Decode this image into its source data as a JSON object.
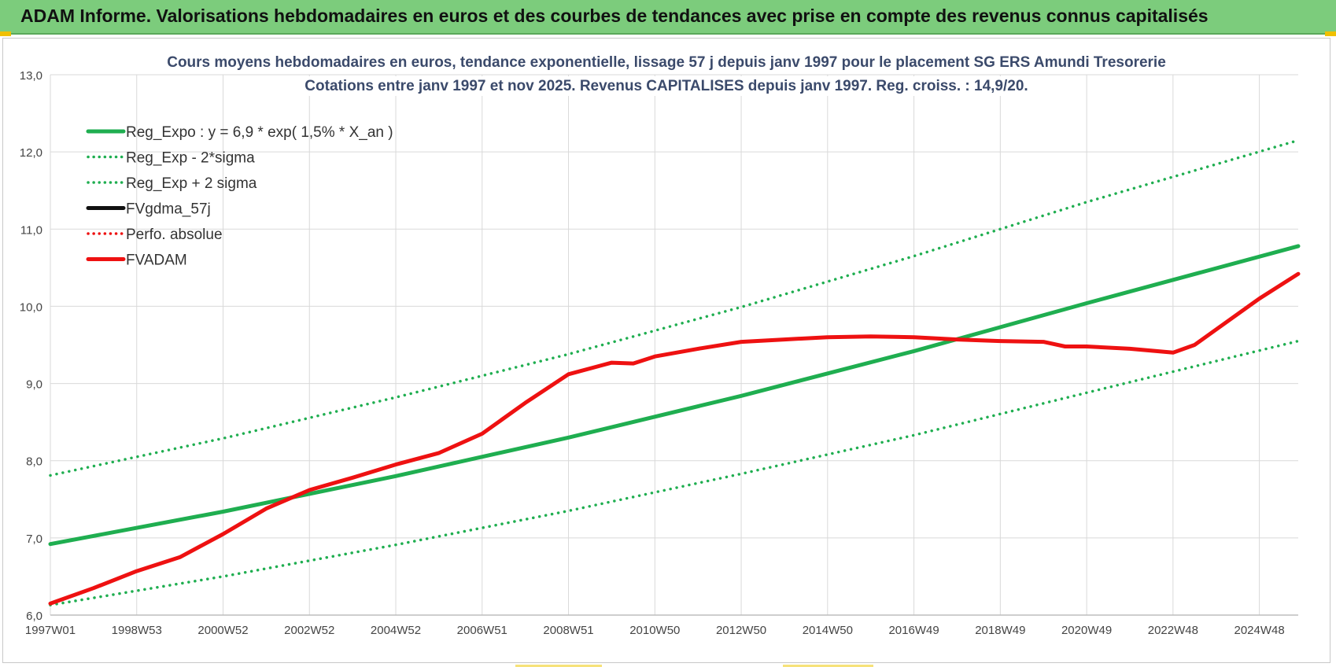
{
  "banner": {
    "title": "ADAM Informe. Valorisations hebdomadaires en euros et des courbes de tendances avec prise en compte des revenus connus capitalisés"
  },
  "colors": {
    "banner_bg": "#7ccc7c",
    "trend_green": "#1fae50",
    "fvadam_red": "#ee1111",
    "fvgdma_black": "#111111",
    "grid": "#d9d9d9"
  },
  "chart_data": {
    "type": "line",
    "title": "Cours moyens hebdomadaires en euros, tendance exponentielle, lissage 57 j depuis janv 1997 pour le placement SG ERS Amundi Tresorerie",
    "subtitle": "Cotations entre janv 1997 et nov 2025. Revenus CAPITALISES depuis janv 1997. Reg. croiss. : 14,9/20.",
    "xlabel": "",
    "ylabel": "",
    "ylim": [
      6.0,
      13.0
    ],
    "xlim": [
      1997.0,
      2025.9
    ],
    "grid": true,
    "legend_position": "top-left",
    "y_ticks": [
      {
        "value": 6.0,
        "label": "6,0"
      },
      {
        "value": 7.0,
        "label": "7,0"
      },
      {
        "value": 8.0,
        "label": "8,0"
      },
      {
        "value": 9.0,
        "label": "9,0"
      },
      {
        "value": 10.0,
        "label": "10,0"
      },
      {
        "value": 11.0,
        "label": "11,0"
      },
      {
        "value": 12.0,
        "label": "12,0"
      },
      {
        "value": 13.0,
        "label": "13,0"
      }
    ],
    "x_ticks": [
      {
        "value": 1997.0,
        "label": "1997W01"
      },
      {
        "value": 1999.0,
        "label": "1998W53"
      },
      {
        "value": 2001.0,
        "label": "2000W52"
      },
      {
        "value": 2003.0,
        "label": "2002W52"
      },
      {
        "value": 2005.0,
        "label": "2004W52"
      },
      {
        "value": 2007.0,
        "label": "2006W51"
      },
      {
        "value": 2009.0,
        "label": "2008W51"
      },
      {
        "value": 2011.0,
        "label": "2010W50"
      },
      {
        "value": 2013.0,
        "label": "2012W50"
      },
      {
        "value": 2015.0,
        "label": "2014W50"
      },
      {
        "value": 2017.0,
        "label": "2016W49"
      },
      {
        "value": 2019.0,
        "label": "2018W49"
      },
      {
        "value": 2021.0,
        "label": "2020W49"
      },
      {
        "value": 2023.0,
        "label": "2022W48"
      },
      {
        "value": 2025.0,
        "label": "2024W48"
      }
    ],
    "series": [
      {
        "name": "Reg_Expo : y = 6,9 * exp( 1,5% *  X_an )",
        "style": "solid",
        "color": "#1fae50",
        "x": [
          1997.0,
          2001.0,
          2005.0,
          2009.0,
          2013.0,
          2017.0,
          2021.0,
          2025.9
        ],
        "y": [
          6.92,
          7.34,
          7.8,
          8.3,
          8.84,
          9.42,
          10.04,
          10.78
        ]
      },
      {
        "name": "Reg_Exp - 2*sigma",
        "style": "dotted",
        "color": "#1fae50",
        "x": [
          1997.0,
          2001.0,
          2005.0,
          2009.0,
          2013.0,
          2017.0,
          2021.0,
          2025.9
        ],
        "y": [
          6.13,
          6.5,
          6.91,
          7.35,
          7.83,
          8.33,
          8.88,
          9.55
        ]
      },
      {
        "name": "Reg_Exp + 2 sigma",
        "style": "dotted",
        "color": "#1fae50",
        "x": [
          1997.0,
          2001.0,
          2005.0,
          2009.0,
          2013.0,
          2017.0,
          2021.0,
          2025.9
        ],
        "y": [
          7.81,
          8.29,
          8.82,
          9.38,
          9.99,
          10.65,
          11.35,
          12.15
        ]
      },
      {
        "name": "FVgdma_57j",
        "style": "solid",
        "color": "#111111",
        "x": [
          1997.0,
          1998.0,
          1999.0,
          2000.0,
          2001.0,
          2002.0,
          2003.0,
          2004.0,
          2005.0,
          2006.0,
          2007.0,
          2008.0,
          2009.0,
          2010.0,
          2010.5,
          2011.0,
          2012.0,
          2013.0,
          2014.0,
          2015.0,
          2016.0,
          2017.0,
          2018.0,
          2019.0,
          2020.0,
          2020.5,
          2021.0,
          2022.0,
          2023.0,
          2023.5,
          2024.0,
          2025.0,
          2025.9
        ],
        "y": [
          6.15,
          6.35,
          6.57,
          6.75,
          7.05,
          7.38,
          7.62,
          7.78,
          7.95,
          8.1,
          8.35,
          8.75,
          9.12,
          9.27,
          9.26,
          9.35,
          9.45,
          9.54,
          9.57,
          9.6,
          9.61,
          9.6,
          9.57,
          9.55,
          9.54,
          9.48,
          9.48,
          9.45,
          9.4,
          9.5,
          9.7,
          10.1,
          10.42
        ]
      },
      {
        "name": "Perfo. absolue",
        "style": "dotted",
        "color": "#ee1111",
        "x": [],
        "y": []
      },
      {
        "name": "FVADAM",
        "style": "solid",
        "color": "#ee1111",
        "x": [
          1997.0,
          1998.0,
          1999.0,
          2000.0,
          2001.0,
          2002.0,
          2003.0,
          2004.0,
          2005.0,
          2006.0,
          2007.0,
          2008.0,
          2009.0,
          2010.0,
          2010.5,
          2011.0,
          2012.0,
          2013.0,
          2014.0,
          2015.0,
          2016.0,
          2017.0,
          2018.0,
          2019.0,
          2020.0,
          2020.5,
          2021.0,
          2022.0,
          2023.0,
          2023.5,
          2024.0,
          2025.0,
          2025.9
        ],
        "y": [
          6.15,
          6.35,
          6.57,
          6.75,
          7.05,
          7.38,
          7.62,
          7.78,
          7.95,
          8.1,
          8.35,
          8.75,
          9.12,
          9.27,
          9.26,
          9.35,
          9.45,
          9.54,
          9.57,
          9.6,
          9.61,
          9.6,
          9.57,
          9.55,
          9.54,
          9.48,
          9.48,
          9.45,
          9.4,
          9.5,
          9.7,
          10.1,
          10.42
        ]
      }
    ]
  }
}
